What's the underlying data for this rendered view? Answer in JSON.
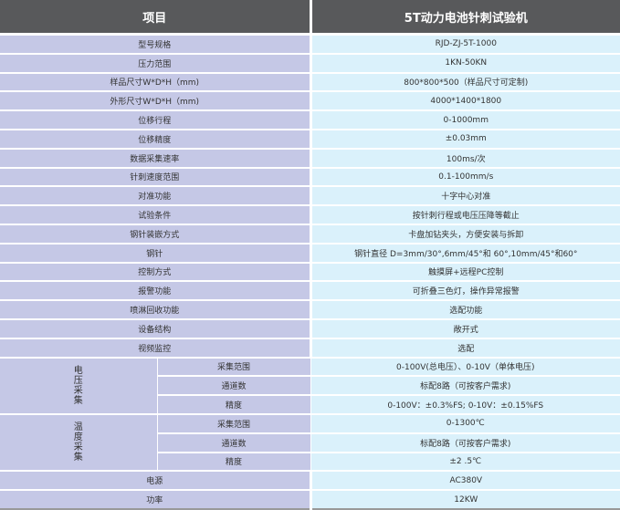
{
  "header": {
    "item": "项目",
    "product": "5T动力电池针刺试验机"
  },
  "rows": [
    {
      "label": "型号规格",
      "value": "RJD-ZJ-5T-1000"
    },
    {
      "label": "压力范围",
      "value": "1KN-50KN"
    },
    {
      "label": "样品尺寸W*D*H（mm)",
      "value": "800*800*500（样品尺寸可定制)"
    },
    {
      "label": "外形尺寸W*D*H（mm)",
      "value": "4000*1400*1800"
    },
    {
      "label": "位移行程",
      "value": "0-1000mm"
    },
    {
      "label": "位移精度",
      "value": "±0.03mm"
    },
    {
      "label": "数据采集速率",
      "value": "100ms/次"
    },
    {
      "label": "针刺速度范围",
      "value": "0.1-100mm/s"
    },
    {
      "label": "对准功能",
      "value": "十字中心对准"
    },
    {
      "label": "试验条件",
      "value": "按针刺行程或电压压降等截止"
    },
    {
      "label": "钢针装嵌方式",
      "value": "卡盘加钻夹头，方便安装与拆卸"
    },
    {
      "label": "钢针",
      "value": "钢针直径 D=3mm/30°,6mm/45°和 60°,10mm/45°和60°"
    },
    {
      "label": "控制方式",
      "value": "触摸屏+远程PC控制"
    },
    {
      "label": "报警功能",
      "value": "可折叠三色灯，操作异常报警"
    },
    {
      "label": "喷淋回收功能",
      "value": "选配功能"
    },
    {
      "label": "设备结构",
      "value": "敞开式"
    },
    {
      "label": "视频监控",
      "value": "选配"
    }
  ],
  "groups": [
    {
      "label": "电压采集",
      "rows": [
        {
          "label": "采集范围",
          "value": "0-100V(总电压）、0-10V（单体电压)"
        },
        {
          "label": "通道数",
          "value": "标配8路（可按客户需求)"
        },
        {
          "label": "精度",
          "value": "0-100V：±0.3%FS;  0-10V：±0.15%FS"
        }
      ]
    },
    {
      "label": "温度采集",
      "rows": [
        {
          "label": "采集范围",
          "value": "0-1300℃"
        },
        {
          "label": "通道数",
          "value": "标配8路（可按客户需求)"
        },
        {
          "label": "精度",
          "value": "±2 .5℃"
        }
      ]
    }
  ],
  "footer_rows": [
    {
      "label": "电源",
      "value": "AC380V"
    },
    {
      "label": "功率",
      "value": "12KW"
    }
  ]
}
